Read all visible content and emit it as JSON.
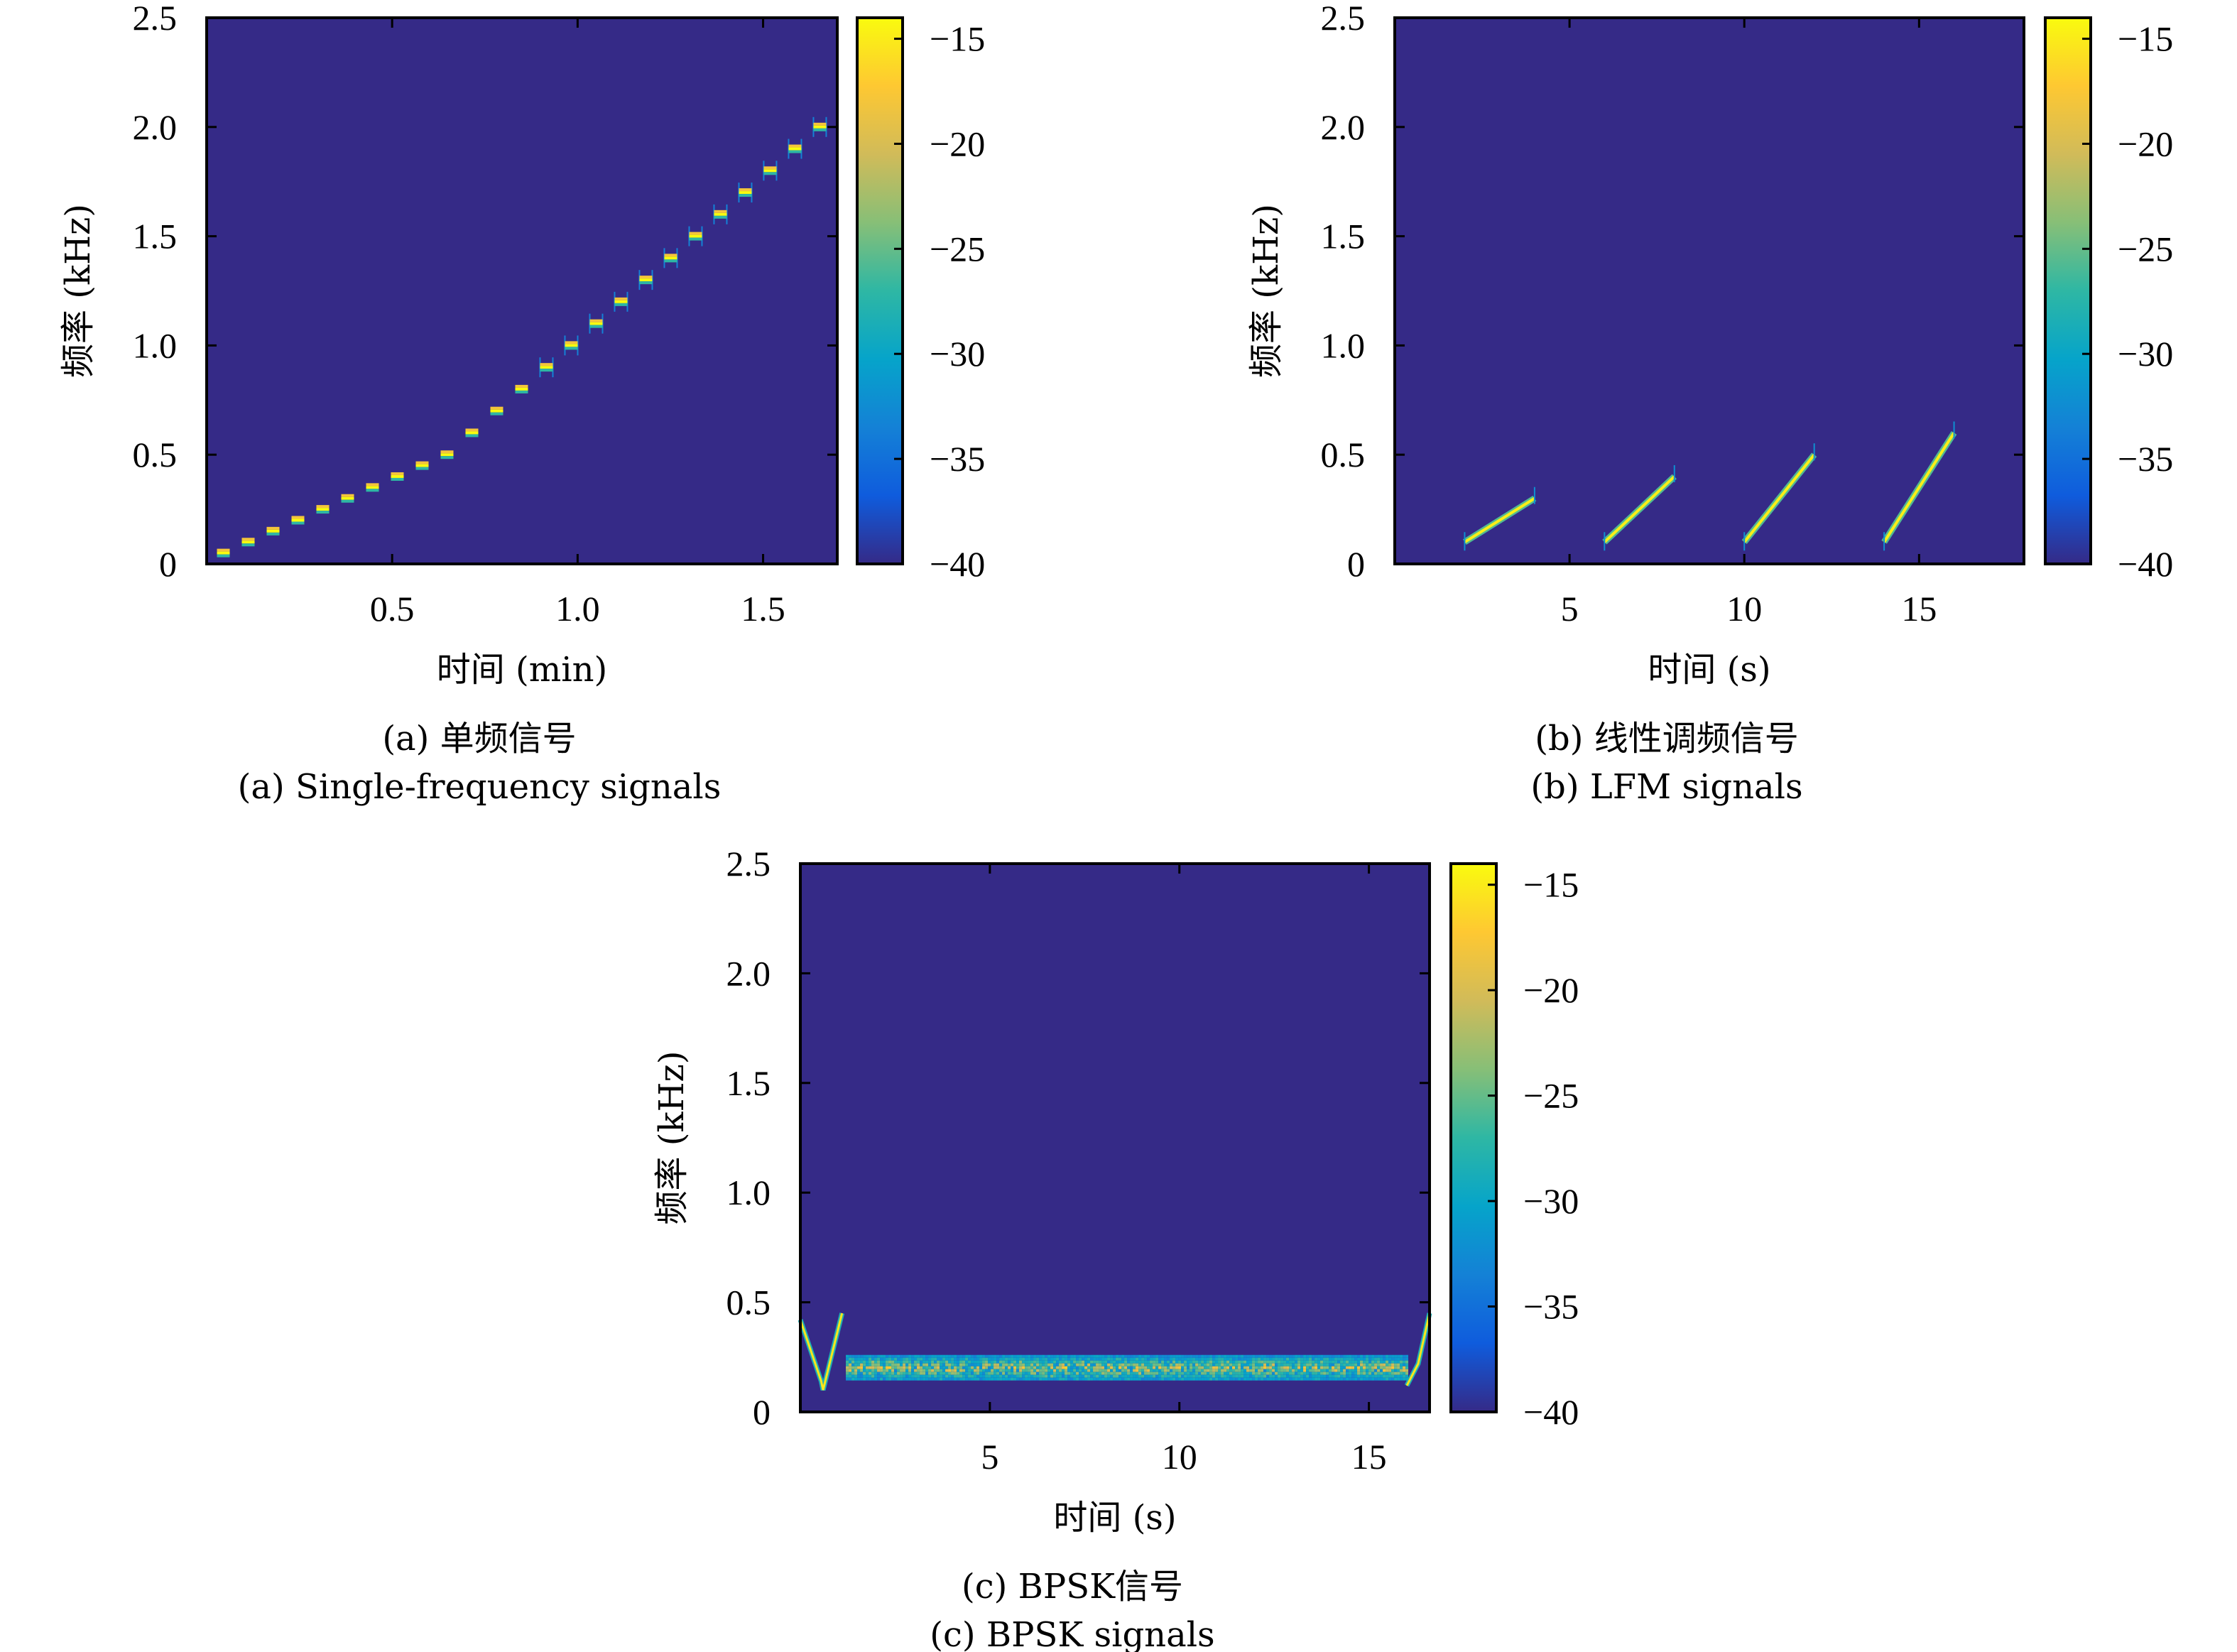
{
  "colors": {
    "background": "#352a87",
    "colormap": [
      "#352a87",
      "#0f5cdd",
      "#1481d6",
      "#06a4ca",
      "#2eb7a4",
      "#87bf77",
      "#d1bb59",
      "#fec832",
      "#f9fb0e"
    ]
  },
  "chart_data": [
    {
      "id": "a",
      "type": "heatmap",
      "subtype": "spectrogram",
      "xlabel": "时间 (min)",
      "ylabel": "频率 (kHz)",
      "xlim": [
        0,
        1.7
      ],
      "ylim": [
        0,
        2.5
      ],
      "xticks": [
        0.5,
        1.0,
        1.5
      ],
      "xtick_labels": [
        "0.5",
        "1.0",
        "1.5"
      ],
      "yticks": [
        0,
        0.5,
        1.0,
        1.5,
        2.0,
        2.5
      ],
      "ytick_labels": [
        "0",
        "0.5",
        "1.0",
        "1.5",
        "2.0",
        "2.5"
      ],
      "colorbar": {
        "range": [
          -40,
          -14
        ],
        "ticks": [
          -40,
          -35,
          -30,
          -25,
          -20,
          -15
        ],
        "tick_labels": [
          "−40",
          "−35",
          "−30",
          "−25",
          "−20",
          "−15"
        ]
      },
      "caption_cn": "(a) 单频信号",
      "caption_en": "(a) Single-frequency signals",
      "signal_kind": "tones",
      "tones": {
        "time_min": [
          0.045,
          0.112,
          0.179,
          0.246,
          0.313,
          0.38,
          0.447,
          0.514,
          0.581,
          0.648,
          0.715,
          0.782,
          0.849,
          0.916,
          0.983,
          1.05,
          1.117,
          1.184,
          1.251,
          1.318,
          1.385,
          1.452,
          1.519,
          1.586,
          1.653
        ],
        "freq_khz": [
          0.05,
          0.1,
          0.15,
          0.2,
          0.25,
          0.3,
          0.35,
          0.4,
          0.45,
          0.5,
          0.6,
          0.7,
          0.8,
          0.9,
          1.0,
          1.1,
          1.2,
          1.3,
          1.4,
          1.5,
          1.6,
          1.7,
          1.8,
          1.9,
          2.0
        ]
      }
    },
    {
      "id": "b",
      "type": "heatmap",
      "subtype": "spectrogram",
      "xlabel": "时间 (s)",
      "ylabel": "频率 (kHz)",
      "xlim": [
        0,
        18
      ],
      "ylim": [
        0,
        2.5
      ],
      "xticks": [
        5,
        10,
        15
      ],
      "xtick_labels": [
        "5",
        "10",
        "15"
      ],
      "yticks": [
        0,
        0.5,
        1.0,
        1.5,
        2.0,
        2.5
      ],
      "ytick_labels": [
        "0",
        "0.5",
        "1.0",
        "1.5",
        "2.0",
        "2.5"
      ],
      "colorbar": {
        "range": [
          -40,
          -14
        ],
        "ticks": [
          -40,
          -35,
          -30,
          -25,
          -20,
          -15
        ],
        "tick_labels": [
          "−40",
          "−35",
          "−30",
          "−25",
          "−20",
          "−15"
        ]
      },
      "caption_cn": "(b) 线性调频信号",
      "caption_en": "(b) LFM signals",
      "signal_kind": "chirps",
      "chirps": [
        {
          "t0": 2,
          "t1": 4,
          "f0": 0.1,
          "f1": 0.3
        },
        {
          "t0": 6,
          "t1": 8,
          "f0": 0.1,
          "f1": 0.4
        },
        {
          "t0": 10,
          "t1": 12,
          "f0": 0.1,
          "f1": 0.5
        },
        {
          "t0": 14,
          "t1": 16,
          "f0": 0.1,
          "f1": 0.6
        }
      ]
    },
    {
      "id": "c",
      "type": "heatmap",
      "subtype": "spectrogram",
      "xlabel": "时间 (s)",
      "ylabel": "频率 (kHz)",
      "xlim": [
        0,
        16.6
      ],
      "ylim": [
        0,
        2.5
      ],
      "xticks": [
        5,
        10,
        15
      ],
      "xtick_labels": [
        "5",
        "10",
        "15"
      ],
      "yticks": [
        0,
        0.5,
        1.0,
        1.5,
        2.0,
        2.5
      ],
      "ytick_labels": [
        "0",
        "0.5",
        "1.0",
        "1.5",
        "2.0",
        "2.5"
      ],
      "colorbar": {
        "range": [
          -40,
          -14
        ],
        "ticks": [
          -40,
          -35,
          -30,
          -25,
          -20,
          -15
        ],
        "tick_labels": [
          "−40",
          "−35",
          "−30",
          "−25",
          "−20",
          "−15"
        ]
      },
      "caption_cn": "(c) BPSK信号",
      "caption_en": "(c) BPSK signals",
      "signal_kind": "bpsk",
      "bpsk": {
        "t_start": 1.2,
        "t_end": 16.0,
        "f_low": 0.15,
        "f_high": 0.26,
        "edge_left": [
          0,
          1.1
        ],
        "edge_right": [
          16.0,
          16.6
        ],
        "edge_fmin": 0.1,
        "edge_fmax": 0.45
      }
    }
  ]
}
